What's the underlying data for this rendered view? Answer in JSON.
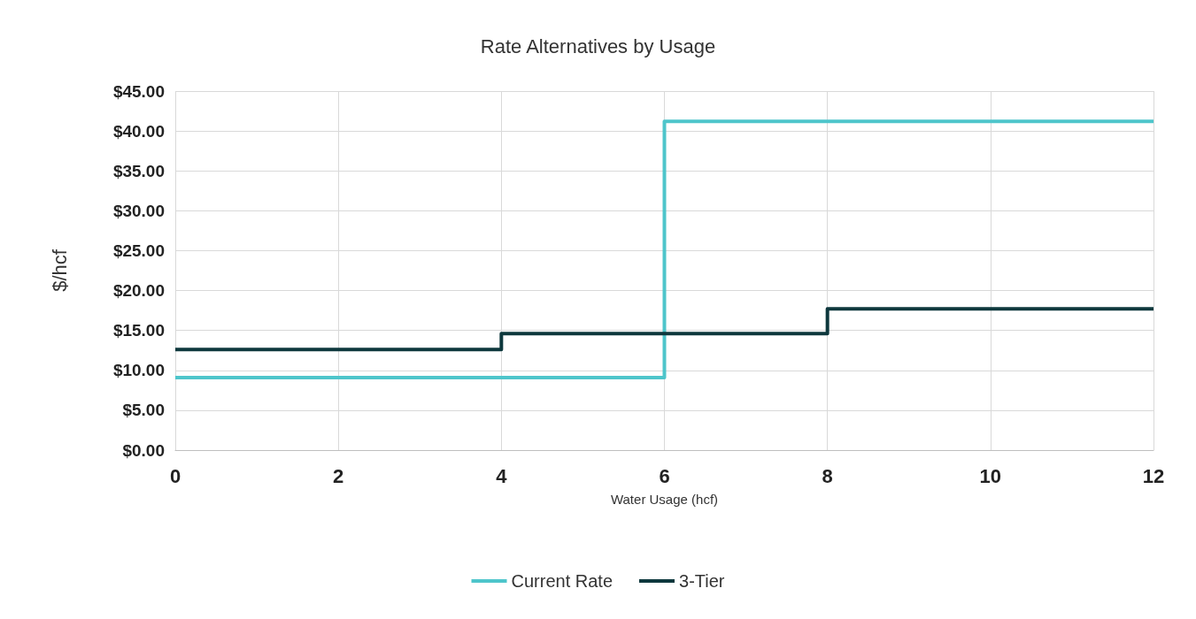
{
  "chart_data": {
    "type": "step",
    "title": "Rate Alternatives by Usage",
    "xlabel": "Water Usage (hcf)",
    "ylabel": "$/hcf",
    "series": [
      {
        "name": "Current Rate",
        "color": "#4ec5cb",
        "x": [
          0,
          6,
          12
        ],
        "values": [
          9.1,
          41.2,
          41.2
        ]
      },
      {
        "name": "3-Tier",
        "color": "#0e383d",
        "x": [
          0,
          4,
          8,
          12
        ],
        "values": [
          12.6,
          14.6,
          17.7,
          17.7
        ]
      }
    ],
    "xlim": [
      0,
      12
    ],
    "xticks": [
      0,
      2,
      4,
      6,
      8,
      10,
      12
    ],
    "ylim": [
      0,
      45
    ],
    "yticks": [
      {
        "value": 0,
        "label": "$0.00"
      },
      {
        "value": 5,
        "label": "$5.00"
      },
      {
        "value": 10,
        "label": "$10.00"
      },
      {
        "value": 15,
        "label": "$15.00"
      },
      {
        "value": 20,
        "label": "$20.00"
      },
      {
        "value": 25,
        "label": "$25.00"
      },
      {
        "value": 30,
        "label": "$30.00"
      },
      {
        "value": 35,
        "label": "$35.00"
      },
      {
        "value": 40,
        "label": "$40.00"
      },
      {
        "value": 45,
        "label": "$45.00"
      }
    ],
    "grid": true,
    "legend": "bottom",
    "marker": "none",
    "line_style": "solid"
  }
}
